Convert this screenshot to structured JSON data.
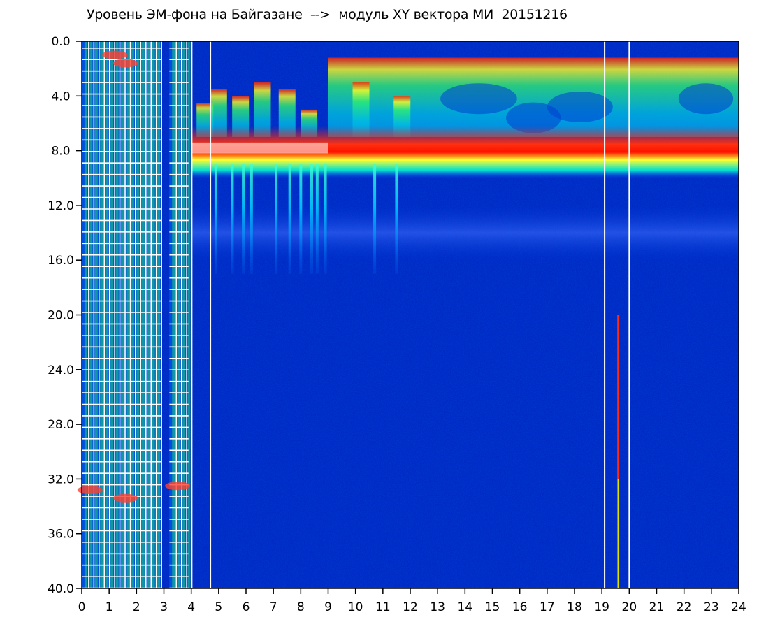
{
  "title": "Уровень ЭМ-фона на Байгазане  -->  модуль XY вектора МИ  20151216",
  "chart_data": {
    "type": "heatmap",
    "title": "Уровень ЭМ-фона на Байгазане  -->  модуль XY вектора МИ  20151216",
    "xlabel": "",
    "ylabel": "",
    "xlim": [
      0,
      24
    ],
    "ylim": [
      0.0,
      40.0
    ],
    "y_axis_inverted": true,
    "x_ticks": [
      "0",
      "1",
      "2",
      "3",
      "4",
      "5",
      "6",
      "7",
      "8",
      "9",
      "10",
      "11",
      "12",
      "13",
      "14",
      "15",
      "16",
      "17",
      "18",
      "19",
      "20",
      "21",
      "22",
      "23",
      "24"
    ],
    "y_ticks": [
      "0.0",
      "4.0",
      "8.0",
      "12.0",
      "16.0",
      "20.0",
      "24.0",
      "28.0",
      "32.0",
      "36.0",
      "40.0"
    ],
    "colormap": [
      "#0000a0",
      "#0033d0",
      "#0080ff",
      "#00e0e0",
      "#00ff60",
      "#ffff00",
      "#ff2000",
      "#ffffff"
    ],
    "features": {
      "gap_lines_hours": [
        4.7,
        19.1,
        20.0
      ],
      "red_spike_hour": 19.6,
      "intense_band_y": [
        7.0,
        9.0
      ],
      "secondary_band_y": [
        13.0,
        15.0
      ],
      "dense_grid_interval_hours": [
        [
          0,
          2.9
        ],
        [
          3.2,
          3.9
        ]
      ]
    }
  }
}
